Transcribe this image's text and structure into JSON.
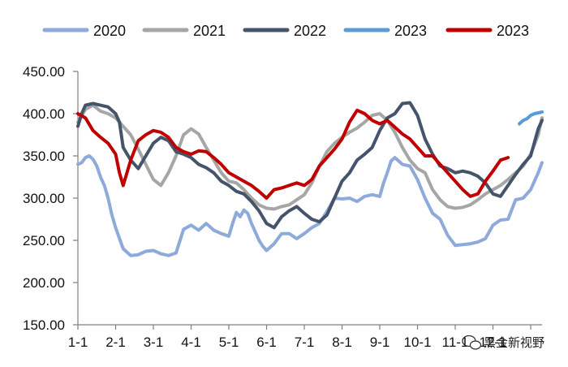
{
  "chart_data": {
    "type": "line",
    "title": "",
    "xlabel": "",
    "ylabel": "",
    "ylim": [
      150,
      450
    ],
    "yticks": [
      "450.00",
      "400.00",
      "350.00",
      "300.00",
      "250.00",
      "200.00",
      "150.00"
    ],
    "ytick_values": [
      450,
      400,
      350,
      300,
      250,
      200,
      150
    ],
    "x_range": [
      0,
      12.3
    ],
    "xtick_labels": [
      "1-1",
      "2-1",
      "3-1",
      "4-1",
      "5-1",
      "6-1",
      "7-1",
      "8-1",
      "9-1",
      "10-1",
      "11-1",
      "12-1"
    ],
    "grid": false,
    "legend_position": "top",
    "series": [
      {
        "name": "2020",
        "color": "#8eaadb",
        "x": [
          0,
          0.1,
          0.2,
          0.3,
          0.4,
          0.5,
          0.6,
          0.7,
          0.8,
          0.9,
          1.0,
          1.2,
          1.4,
          1.6,
          1.8,
          2.0,
          2.2,
          2.4,
          2.6,
          2.8,
          3.0,
          3.2,
          3.4,
          3.6,
          3.8,
          4.0,
          4.1,
          4.2,
          4.3,
          4.4,
          4.5,
          4.6,
          4.7,
          4.8,
          4.9,
          5.0,
          5.2,
          5.4,
          5.6,
          5.8,
          6.0,
          6.2,
          6.4,
          6.6,
          6.8,
          7.0,
          7.2,
          7.4,
          7.6,
          7.8,
          8.0,
          8.1,
          8.2,
          8.3,
          8.4,
          8.6,
          8.8,
          9.0,
          9.2,
          9.4,
          9.6,
          9.8,
          10.0,
          10.2,
          10.4,
          10.6,
          10.8,
          11.0,
          11.2,
          11.4,
          11.6,
          11.8,
          12.0,
          12.2,
          12.3
        ],
        "values": [
          340,
          342,
          348,
          350,
          346,
          338,
          325,
          315,
          300,
          280,
          265,
          240,
          232,
          233,
          237,
          238,
          234,
          232,
          235,
          263,
          268,
          262,
          270,
          262,
          258,
          255,
          270,
          283,
          278,
          286,
          282,
          270,
          260,
          250,
          243,
          238,
          246,
          258,
          258,
          252,
          258,
          265,
          270,
          284,
          300,
          299,
          300,
          296,
          302,
          304,
          302,
          318,
          330,
          344,
          348,
          340,
          338,
          322,
          300,
          282,
          275,
          256,
          244,
          245,
          246,
          248,
          252,
          268,
          274,
          275,
          298,
          300,
          310,
          330,
          342
        ]
      },
      {
        "name": "2021",
        "color": "#a6a6a6",
        "x": [
          0,
          0.2,
          0.4,
          0.6,
          0.8,
          1.0,
          1.2,
          1.4,
          1.6,
          1.8,
          2.0,
          2.2,
          2.4,
          2.6,
          2.8,
          3.0,
          3.2,
          3.4,
          3.6,
          3.8,
          4.0,
          4.2,
          4.4,
          4.6,
          4.8,
          5.0,
          5.2,
          5.4,
          5.6,
          5.8,
          6.0,
          6.2,
          6.4,
          6.6,
          6.8,
          7.0,
          7.2,
          7.4,
          7.6,
          7.8,
          8.0,
          8.2,
          8.4,
          8.6,
          8.8,
          9.0,
          9.2,
          9.4,
          9.6,
          9.8,
          10.0,
          10.2,
          10.4,
          10.6,
          10.8,
          11.0,
          11.2,
          11.4,
          11.6,
          11.8,
          12.0,
          12.2,
          12.3
        ],
        "values": [
          390,
          405,
          410,
          403,
          400,
          395,
          385,
          375,
          358,
          340,
          322,
          315,
          330,
          350,
          375,
          382,
          376,
          360,
          345,
          330,
          320,
          318,
          310,
          300,
          292,
          288,
          287,
          290,
          292,
          298,
          304,
          318,
          338,
          355,
          365,
          372,
          378,
          383,
          390,
          398,
          400,
          392,
          378,
          360,
          345,
          335,
          330,
          310,
          298,
          290,
          288,
          289,
          292,
          298,
          305,
          310,
          315,
          322,
          330,
          338,
          352,
          375,
          395
        ]
      },
      {
        "name": "2022",
        "color": "#44546a",
        "x": [
          0,
          0.1,
          0.2,
          0.4,
          0.6,
          0.8,
          1.0,
          1.1,
          1.2,
          1.4,
          1.6,
          1.8,
          2.0,
          2.2,
          2.4,
          2.6,
          2.8,
          3.0,
          3.2,
          3.4,
          3.6,
          3.8,
          4.0,
          4.2,
          4.4,
          4.6,
          4.8,
          5.0,
          5.2,
          5.4,
          5.6,
          5.8,
          6.0,
          6.2,
          6.4,
          6.6,
          6.8,
          7.0,
          7.2,
          7.4,
          7.6,
          7.8,
          8.0,
          8.2,
          8.4,
          8.6,
          8.8,
          9.0,
          9.2,
          9.4,
          9.6,
          9.8,
          10.0,
          10.2,
          10.4,
          10.6,
          10.8,
          11.0,
          11.2,
          11.4,
          11.6,
          11.8,
          12.0,
          12.2,
          12.3
        ],
        "values": [
          385,
          400,
          410,
          412,
          410,
          408,
          400,
          390,
          360,
          345,
          335,
          350,
          365,
          372,
          368,
          355,
          352,
          348,
          340,
          336,
          330,
          320,
          315,
          308,
          305,
          296,
          285,
          270,
          265,
          278,
          285,
          290,
          282,
          275,
          272,
          280,
          300,
          320,
          330,
          345,
          352,
          360,
          380,
          395,
          400,
          412,
          413,
          398,
          370,
          352,
          338,
          335,
          330,
          332,
          330,
          326,
          318,
          305,
          302,
          315,
          328,
          340,
          350,
          382,
          392
        ]
      },
      {
        "name": "2023",
        "color": "#5b9bd5",
        "x": [
          11.7,
          11.8,
          11.9,
          12.0,
          12.1,
          12.2,
          12.3
        ],
        "values": [
          388,
          392,
          394,
          398,
          400,
          401,
          402
        ]
      },
      {
        "name": "2023",
        "color": "#c00000",
        "x": [
          0,
          0.2,
          0.4,
          0.6,
          0.8,
          1.0,
          1.1,
          1.2,
          1.4,
          1.6,
          1.8,
          2.0,
          2.2,
          2.4,
          2.6,
          2.8,
          3.0,
          3.2,
          3.4,
          3.6,
          3.8,
          4.0,
          4.2,
          4.4,
          4.6,
          4.8,
          5.0,
          5.2,
          5.4,
          5.6,
          5.8,
          6.0,
          6.2,
          6.4,
          6.6,
          6.8,
          7.0,
          7.2,
          7.4,
          7.6,
          7.8,
          8.0,
          8.2,
          8.4,
          8.6,
          8.8,
          9.0,
          9.2,
          9.4,
          9.6,
          9.8,
          10.0,
          10.2,
          10.4,
          10.6,
          10.8,
          11.0,
          11.2,
          11.4
        ],
        "values": [
          400,
          395,
          380,
          372,
          365,
          352,
          330,
          315,
          345,
          368,
          375,
          380,
          378,
          372,
          360,
          355,
          352,
          356,
          355,
          348,
          340,
          330,
          325,
          320,
          315,
          308,
          300,
          310,
          312,
          315,
          318,
          315,
          322,
          338,
          348,
          358,
          370,
          390,
          404,
          400,
          392,
          388,
          392,
          384,
          376,
          370,
          360,
          350,
          350,
          340,
          330,
          320,
          310,
          302,
          305,
          320,
          332,
          345,
          348
        ]
      }
    ]
  },
  "watermark": {
    "text": "黑金新视野",
    "icon": "wechat-icon"
  }
}
